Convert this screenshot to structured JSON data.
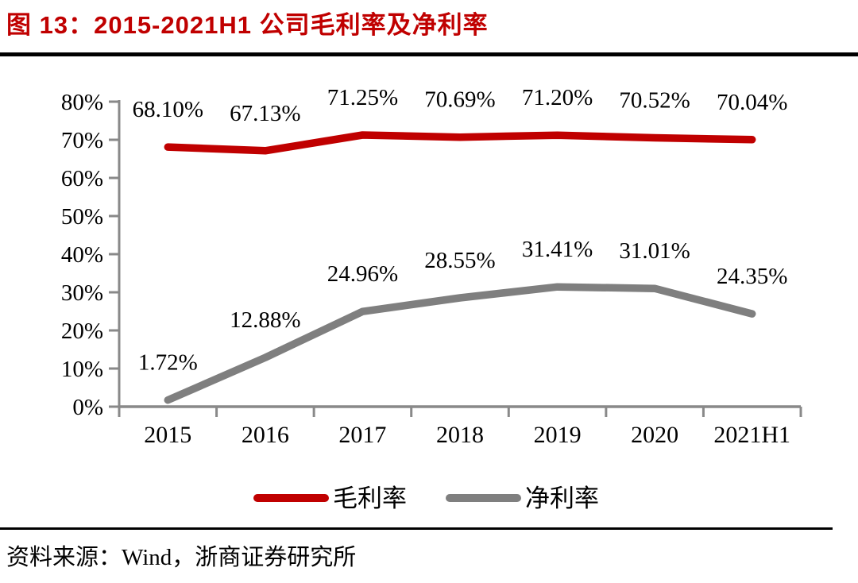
{
  "figure": {
    "title": "图 13：2015-2021H1 公司毛利率及净利率",
    "source": "资料来源：Wind，浙商证券研究所"
  },
  "colors": {
    "title_red": "#c00000",
    "gross_margin_red": "#c00000",
    "net_margin_gray": "#7f7f7f",
    "axis_gray": "#898989",
    "text_black": "#000000",
    "rule_black": "#000000",
    "background": "#ffffff"
  },
  "chart_data": {
    "type": "line",
    "title": "2015-2021H1 公司毛利率及净利率",
    "categories": [
      "2015",
      "2016",
      "2017",
      "2018",
      "2019",
      "2020",
      "2021H1"
    ],
    "series": [
      {
        "name": "毛利率",
        "color": "#c00000",
        "values": [
          68.1,
          67.13,
          71.25,
          70.69,
          71.2,
          70.52,
          70.04
        ],
        "data_labels": [
          "68.10%",
          "67.13%",
          "71.25%",
          "70.69%",
          "71.20%",
          "70.52%",
          "70.04%"
        ]
      },
      {
        "name": "净利率",
        "color": "#7f7f7f",
        "values": [
          1.72,
          12.88,
          24.96,
          28.55,
          31.41,
          31.01,
          24.35
        ],
        "data_labels": [
          "1.72%",
          "12.88%",
          "24.96%",
          "28.55%",
          "31.41%",
          "31.01%",
          "24.35%"
        ]
      }
    ],
    "ylim": [
      0,
      80
    ],
    "ytick_step": 10,
    "ytick_labels": [
      "0%",
      "10%",
      "20%",
      "30%",
      "40%",
      "50%",
      "60%",
      "70%",
      "80%"
    ],
    "xlabel": "",
    "ylabel": "",
    "grid": false,
    "data_labels_shown": true,
    "legend_position": "bottom",
    "legend_entries": [
      "毛利率",
      "净利率"
    ]
  }
}
